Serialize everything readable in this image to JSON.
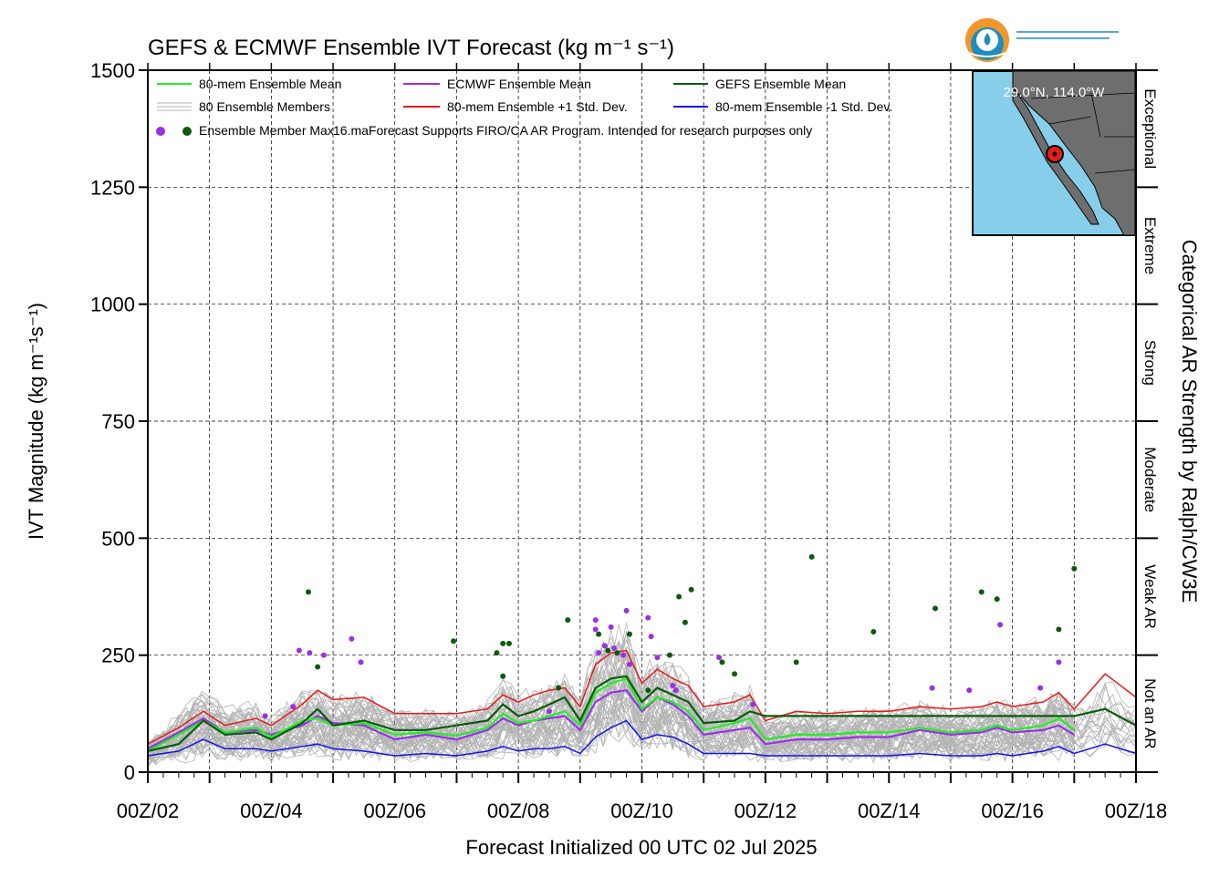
{
  "chart_data": {
    "type": "line",
    "title": "GEFS & ECMWF Ensemble IVT Forecast (kg m⁻¹ s⁻¹)",
    "xlabel": "Forecast Initialized 00 UTC 02 Jul 2025",
    "ylabel": "IVT Magnitude (kg m⁻¹s⁻¹)",
    "right_label": "Categorical AR Strength by Ralph/CW3E",
    "ylim": [
      0,
      1500
    ],
    "yticks": [
      "0",
      "250",
      "500",
      "750",
      "1000",
      "1250",
      "1500"
    ],
    "xlim_days": [
      2,
      18
    ],
    "xticks": [
      "00Z/02",
      "00Z/04",
      "00Z/06",
      "00Z/08",
      "00Z/10",
      "00Z/12",
      "00Z/14",
      "00Z/16",
      "00Z/18"
    ],
    "grid": true,
    "legend_position": "top-left",
    "categories_right": [
      {
        "label": "Not an AR",
        "range": [
          0,
          250
        ]
      },
      {
        "label": "Weak AR",
        "range": [
          250,
          500
        ]
      },
      {
        "label": "Moderate",
        "range": [
          500,
          750
        ]
      },
      {
        "label": "Strong",
        "range": [
          750,
          1000
        ]
      },
      {
        "label": "Extreme",
        "range": [
          1000,
          1250
        ]
      },
      {
        "label": "Exceptional",
        "range": [
          1250,
          1500
        ]
      }
    ],
    "legend": {
      "mean80": "80-mem Ensemble Mean",
      "members": "80 Ensemble Members",
      "max": "Ensemble Member Max",
      "ecmwf": "ECMWF Ensemble Mean",
      "plus1": "80-mem Ensemble +1 Std. Dev.",
      "gefs": "GEFS Ensemble Mean",
      "minus1": "80-mem Ensemble -1 Std. Dev.",
      "overlap": "16.maForecast Supports FIRO/CA AR Program. Intended for research purposes only"
    },
    "colors": {
      "mean80": "#22ee22",
      "ecmwf": "#9b30e6",
      "gefs": "#0a5c0a",
      "plus1": "#e81a1a",
      "minus1": "#1414e6",
      "members": "#b3b3b3",
      "map_ocean": "#87ceeb",
      "map_land": "#6e6e6e",
      "logo_orange": "#f0962a",
      "logo_blue": "#1e8cbe"
    },
    "map": {
      "label": "29.0°N, 114.0°W",
      "lat": 29.0,
      "lon": -114.0
    },
    "series": [
      {
        "name": "80-mem Ensemble Mean",
        "x": [
          2.0,
          2.5,
          2.9,
          3.25,
          3.75,
          4.0,
          4.5,
          4.75,
          5.0,
          5.5,
          6.0,
          6.5,
          7.0,
          7.5,
          7.75,
          8.0,
          8.25,
          8.5,
          8.75,
          9.0,
          9.25,
          9.5,
          9.75,
          10.0,
          10.25,
          10.5,
          10.75,
          11.0,
          11.5,
          11.75,
          12.0,
          12.5,
          13.0,
          13.5,
          14.0,
          14.5,
          15.0,
          15.5,
          15.75,
          16.0,
          16.5,
          16.75,
          17.0
        ],
        "y": [
          45,
          80,
          110,
          85,
          95,
          75,
          110,
          115,
          100,
          105,
          80,
          85,
          78,
          95,
          125,
          105,
          110,
          120,
          130,
          100,
          170,
          190,
          200,
          135,
          160,
          150,
          130,
          90,
          105,
          115,
          70,
          80,
          80,
          85,
          85,
          95,
          85,
          90,
          100,
          90,
          100,
          115,
          90
        ]
      },
      {
        "name": "ECMWF Ensemble Mean",
        "x": [
          2.0,
          2.5,
          2.9,
          3.25,
          3.75,
          4.0,
          4.5,
          4.75,
          5.0,
          5.5,
          6.0,
          6.5,
          7.0,
          7.5,
          7.75,
          8.0,
          8.25,
          8.5,
          8.75,
          9.0,
          9.25,
          9.5,
          9.75,
          10.0,
          10.25,
          10.5,
          10.75,
          11.0,
          11.5,
          11.75,
          12.0,
          12.5,
          13.0,
          13.5,
          14.0,
          14.5,
          15.0,
          15.5,
          15.75,
          16.0,
          16.5,
          16.75,
          17.0
        ],
        "y": [
          50,
          85,
          115,
          85,
          90,
          80,
          100,
          120,
          105,
          100,
          70,
          80,
          70,
          90,
          115,
          100,
          110,
          115,
          120,
          90,
          150,
          170,
          175,
          130,
          160,
          145,
          120,
          80,
          90,
          95,
          60,
          70,
          70,
          75,
          75,
          90,
          80,
          85,
          95,
          85,
          90,
          100,
          80
        ]
      },
      {
        "name": "GEFS Ensemble Mean",
        "x": [
          2.0,
          2.5,
          2.9,
          3.25,
          3.75,
          4.0,
          4.5,
          4.75,
          5.0,
          5.5,
          6.0,
          6.5,
          7.0,
          7.5,
          7.75,
          8.0,
          8.25,
          8.5,
          8.75,
          9.0,
          9.25,
          9.5,
          9.75,
          10.0,
          10.25,
          10.5,
          10.75,
          11.0,
          11.5,
          11.75,
          12.0,
          12.5,
          13.0,
          13.5,
          14.0,
          14.5,
          15.0,
          15.5,
          15.75,
          16.0,
          16.5,
          16.75,
          17.0,
          17.5,
          18.0
        ],
        "y": [
          45,
          60,
          110,
          80,
          85,
          70,
          105,
          135,
          100,
          110,
          90,
          90,
          100,
          110,
          145,
          120,
          130,
          145,
          160,
          110,
          180,
          200,
          205,
          150,
          180,
          165,
          150,
          105,
          110,
          130,
          120,
          120,
          120,
          120,
          120,
          120,
          120,
          120,
          120,
          120,
          120,
          120,
          120,
          135,
          100
        ]
      },
      {
        "name": "80-mem Ensemble +1 Std. Dev.",
        "x": [
          2.0,
          2.5,
          2.9,
          3.25,
          3.75,
          4.0,
          4.5,
          4.75,
          5.0,
          5.5,
          6.0,
          6.5,
          7.0,
          7.5,
          7.75,
          8.0,
          8.25,
          8.5,
          8.75,
          9.0,
          9.25,
          9.5,
          9.75,
          10.0,
          10.25,
          10.5,
          10.75,
          11.0,
          11.5,
          11.75,
          12.0,
          12.5,
          13.0,
          13.5,
          14.0,
          14.5,
          15.0,
          15.5,
          15.75,
          16.0,
          16.5,
          16.75,
          17.0,
          17.5,
          18.0
        ],
        "y": [
          60,
          95,
          130,
          100,
          115,
          100,
          145,
          175,
          155,
          160,
          125,
          125,
          125,
          135,
          165,
          150,
          165,
          175,
          180,
          140,
          230,
          255,
          260,
          190,
          220,
          200,
          185,
          140,
          150,
          165,
          110,
          130,
          125,
          130,
          130,
          140,
          135,
          140,
          150,
          140,
          150,
          170,
          135,
          210,
          160
        ]
      },
      {
        "name": "80-mem Ensemble -1 Std. Dev.",
        "x": [
          2.0,
          2.5,
          2.9,
          3.25,
          3.75,
          4.0,
          4.5,
          4.75,
          5.0,
          5.5,
          6.0,
          6.5,
          7.0,
          7.5,
          7.75,
          8.0,
          8.25,
          8.5,
          8.75,
          9.0,
          9.25,
          9.5,
          9.75,
          10.0,
          10.25,
          10.5,
          10.75,
          11.0,
          11.5,
          11.75,
          12.0,
          12.5,
          13.0,
          13.5,
          14.0,
          14.5,
          15.0,
          15.5,
          15.75,
          16.0,
          16.5,
          16.75,
          17.0,
          17.5,
          18.0
        ],
        "y": [
          35,
          45,
          70,
          50,
          50,
          45,
          55,
          60,
          50,
          45,
          35,
          40,
          35,
          45,
          55,
          45,
          50,
          50,
          55,
          40,
          75,
          95,
          110,
          70,
          80,
          75,
          60,
          40,
          40,
          40,
          35,
          35,
          35,
          35,
          35,
          40,
          35,
          35,
          40,
          35,
          45,
          55,
          40,
          60,
          40
        ]
      }
    ],
    "ecmwf_max_points": {
      "x": [
        3.9,
        4.35,
        4.45,
        4.62,
        4.85,
        5.3,
        5.45,
        8.5,
        9.25,
        9.25,
        9.3,
        9.4,
        9.5,
        9.55,
        9.7,
        9.75,
        9.8,
        10.1,
        10.15,
        10.25,
        10.5,
        10.55,
        11.25,
        11.8,
        14.7,
        15.3,
        15.8,
        16.45,
        16.75
      ],
      "y": [
        120,
        140,
        260,
        255,
        250,
        285,
        235,
        130,
        325,
        305,
        255,
        270,
        310,
        265,
        250,
        345,
        230,
        330,
        290,
        245,
        185,
        175,
        245,
        145,
        180,
        175,
        315,
        180,
        235
      ]
    },
    "gefs_max_points": {
      "x": [
        4.6,
        4.75,
        6.95,
        7.65,
        7.75,
        7.85,
        7.75,
        8.65,
        8.8,
        9.3,
        9.45,
        9.6,
        9.8,
        10.1,
        10.45,
        10.6,
        10.7,
        10.8,
        11.3,
        11.5,
        12.5,
        12.75,
        13.75,
        14.75,
        15.5,
        15.75,
        16.75,
        17.0
      ],
      "y": [
        385,
        225,
        280,
        255,
        275,
        275,
        205,
        180,
        325,
        295,
        260,
        255,
        295,
        175,
        250,
        375,
        320,
        390,
        235,
        210,
        235,
        460,
        300,
        350,
        385,
        370,
        305,
        435
      ]
    }
  }
}
